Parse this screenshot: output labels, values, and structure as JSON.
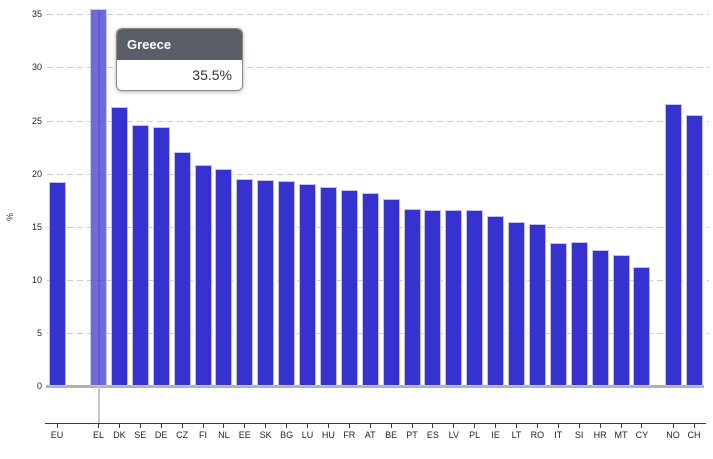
{
  "chart_data": {
    "type": "bar",
    "title": "",
    "xlabel": "",
    "ylabel": "%",
    "ylim": [
      0,
      35
    ],
    "yticks": [
      0,
      5,
      10,
      15,
      20,
      25,
      30,
      35
    ],
    "grid": "horizontal-dashed",
    "legend": "none",
    "categories": [
      "EU",
      "EL",
      "DK",
      "SE",
      "DE",
      "CZ",
      "FI",
      "NL",
      "EE",
      "SK",
      "BG",
      "LU",
      "HU",
      "FR",
      "AT",
      "BE",
      "PT",
      "ES",
      "LV",
      "PL",
      "IE",
      "LT",
      "RO",
      "IT",
      "SI",
      "HR",
      "MT",
      "CY",
      "NO",
      "CH"
    ],
    "values": [
      19.2,
      35.5,
      26.3,
      24.6,
      24.4,
      22.0,
      20.8,
      20.4,
      19.5,
      19.4,
      19.3,
      19.0,
      18.7,
      18.5,
      18.2,
      17.6,
      16.7,
      16.6,
      16.6,
      16.6,
      16.0,
      15.4,
      15.3,
      13.5,
      13.6,
      12.8,
      12.3,
      11.2,
      26.6,
      25.5
    ],
    "group_gaps_after": [
      "EU",
      "CY"
    ],
    "highlight": {
      "category": "EL",
      "name": "Greece",
      "value_label": "35.5%"
    }
  },
  "tooltip": {
    "title": "Greece",
    "value": "35.5%"
  },
  "colors": {
    "bar": "#3632cf",
    "bar_highlight": "rgba(54,50,207,0.72)",
    "crosshair": "#c8c8c8",
    "gridline": "#cccccc",
    "baseline": "#b2b2b2",
    "axis": "#3a3a3a",
    "tooltip_header_bg": "#5a5e66"
  }
}
